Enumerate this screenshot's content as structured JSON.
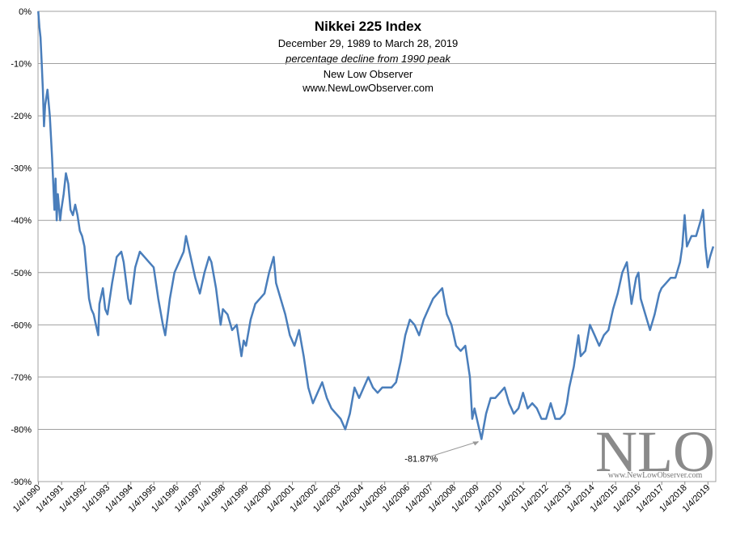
{
  "chart_data": {
    "type": "line",
    "title": "Nikkei 225 Index",
    "subtitles": [
      "December 29, 1989  to March 28, 2019",
      "percentage decline from 1990  peak",
      "New Low Observer",
      "www.NewLowObserver.com"
    ],
    "annotation": "-81.87%",
    "watermark": "NLO",
    "watermark_url": "www.NewLowObserver.com",
    "xlim": [
      1989.99,
      2019.35
    ],
    "ylim": [
      -90,
      0
    ],
    "grid": true,
    "color": "#4a7ebb",
    "xticks": [
      {
        "value": 1990.01,
        "label": "1/4/1990"
      },
      {
        "value": 1991.01,
        "label": "1/4/1991"
      },
      {
        "value": 1992.01,
        "label": "1/4/1992"
      },
      {
        "value": 1993.01,
        "label": "1/4/1993"
      },
      {
        "value": 1994.01,
        "label": "1/4/1994"
      },
      {
        "value": 1995.01,
        "label": "1/4/1995"
      },
      {
        "value": 1996.01,
        "label": "1/4/1996"
      },
      {
        "value": 1997.01,
        "label": "1/4/1997"
      },
      {
        "value": 1998.01,
        "label": "1/4/1998"
      },
      {
        "value": 1999.01,
        "label": "1/4/1999"
      },
      {
        "value": 2000.01,
        "label": "1/4/2000"
      },
      {
        "value": 2001.01,
        "label": "1/4/2001"
      },
      {
        "value": 2002.01,
        "label": "1/4/2002"
      },
      {
        "value": 2003.01,
        "label": "1/4/2003"
      },
      {
        "value": 2004.01,
        "label": "1/4/2004"
      },
      {
        "value": 2005.01,
        "label": "1/4/2005"
      },
      {
        "value": 2006.01,
        "label": "1/4/2006"
      },
      {
        "value": 2007.01,
        "label": "1/4/2007"
      },
      {
        "value": 2008.01,
        "label": "1/4/2008"
      },
      {
        "value": 2009.01,
        "label": "1/4/2009"
      },
      {
        "value": 2010.01,
        "label": "1/4/2010"
      },
      {
        "value": 2011.01,
        "label": "1/4/2011"
      },
      {
        "value": 2012.01,
        "label": "1/4/2012"
      },
      {
        "value": 2013.01,
        "label": "1/4/2013"
      },
      {
        "value": 2014.01,
        "label": "1/4/2014"
      },
      {
        "value": 2015.01,
        "label": "1/4/2015"
      },
      {
        "value": 2016.01,
        "label": "1/4/2016"
      },
      {
        "value": 2017.01,
        "label": "1/4/2017"
      },
      {
        "value": 2018.01,
        "label": "1/4/2018"
      },
      {
        "value": 2019.01,
        "label": "1/4/2019"
      }
    ],
    "yticks": [
      {
        "value": 0,
        "label": "0%"
      },
      {
        "value": -10,
        "label": "-10%"
      },
      {
        "value": -20,
        "label": "-20%"
      },
      {
        "value": -30,
        "label": "-30%"
      },
      {
        "value": -40,
        "label": "-40%"
      },
      {
        "value": -50,
        "label": "-50%"
      },
      {
        "value": -60,
        "label": "-60%"
      },
      {
        "value": -70,
        "label": "-70%"
      },
      {
        "value": -80,
        "label": "-80%"
      },
      {
        "value": -90,
        "label": "-90%"
      }
    ],
    "x": [
      1990.0,
      1990.05,
      1990.1,
      1990.15,
      1990.2,
      1990.25,
      1990.3,
      1990.4,
      1990.5,
      1990.6,
      1990.7,
      1990.75,
      1990.8,
      1990.85,
      1990.95,
      1991.0,
      1991.1,
      1991.2,
      1991.3,
      1991.4,
      1991.5,
      1991.6,
      1991.7,
      1991.8,
      1991.9,
      1992.0,
      1992.1,
      1992.2,
      1992.3,
      1992.4,
      1992.5,
      1992.6,
      1992.65,
      1992.8,
      1992.9,
      1993.0,
      1993.2,
      1993.4,
      1993.6,
      1993.7,
      1993.9,
      1994.0,
      1994.2,
      1994.4,
      1994.6,
      1994.8,
      1995.0,
      1995.2,
      1995.4,
      1995.5,
      1995.7,
      1995.9,
      1996.1,
      1996.3,
      1996.4,
      1996.6,
      1996.8,
      1997.0,
      1997.2,
      1997.4,
      1997.5,
      1997.7,
      1997.9,
      1998.0,
      1998.2,
      1998.4,
      1998.6,
      1998.8,
      1998.9,
      1999.0,
      1999.2,
      1999.4,
      1999.6,
      1999.8,
      2000.0,
      2000.2,
      2000.3,
      2000.5,
      2000.7,
      2000.9,
      2001.1,
      2001.3,
      2001.5,
      2001.7,
      2001.9,
      2002.1,
      2002.3,
      2002.5,
      2002.7,
      2002.9,
      2003.1,
      2003.3,
      2003.5,
      2003.7,
      2003.9,
      2004.1,
      2004.3,
      2004.5,
      2004.7,
      2004.9,
      2005.1,
      2005.3,
      2005.5,
      2005.7,
      2005.9,
      2006.1,
      2006.3,
      2006.5,
      2006.7,
      2006.9,
      2007.1,
      2007.3,
      2007.5,
      2007.7,
      2007.9,
      2008.1,
      2008.3,
      2008.5,
      2008.7,
      2008.8,
      2008.9,
      2009.0,
      2009.2,
      2009.4,
      2009.6,
      2009.8,
      2010.0,
      2010.2,
      2010.4,
      2010.6,
      2010.8,
      2011.0,
      2011.2,
      2011.4,
      2011.6,
      2011.8,
      2012.0,
      2012.2,
      2012.4,
      2012.6,
      2012.8,
      2012.9,
      2013.0,
      2013.2,
      2013.4,
      2013.5,
      2013.7,
      2013.9,
      2014.1,
      2014.3,
      2014.5,
      2014.7,
      2014.9,
      2015.1,
      2015.3,
      2015.5,
      2015.6,
      2015.7,
      2015.9,
      2016.0,
      2016.1,
      2016.3,
      2016.5,
      2016.7,
      2016.9,
      2017.0,
      2017.2,
      2017.4,
      2017.6,
      2017.8,
      2017.9,
      2018.0,
      2018.1,
      2018.3,
      2018.5,
      2018.7,
      2018.8,
      2018.9,
      2019.0,
      2019.1,
      2019.24
    ],
    "values": [
      0,
      -3,
      -5,
      -10,
      -15,
      -22,
      -18,
      -15,
      -20,
      -28,
      -38,
      -32,
      -40,
      -35,
      -40,
      -38,
      -35,
      -31,
      -33,
      -38,
      -39,
      -37,
      -39,
      -42,
      -43,
      -45,
      -50,
      -55,
      -57,
      -58,
      -60,
      -62,
      -56,
      -53,
      -57,
      -58,
      -52,
      -47,
      -46,
      -48,
      -55,
      -56,
      -49,
      -46,
      -47,
      -48,
      -49,
      -55,
      -60,
      -62,
      -55,
      -50,
      -48,
      -46,
      -43,
      -47,
      -51,
      -54,
      -50,
      -47,
      -48,
      -53,
      -60,
      -57,
      -58,
      -61,
      -60,
      -66,
      -63,
      -64,
      -59,
      -56,
      -55,
      -54,
      -50,
      -47,
      -52,
      -55,
      -58,
      -62,
      -64,
      -61,
      -66,
      -72,
      -75,
      -73,
      -71,
      -74,
      -76,
      -77,
      -78,
      -80,
      -77,
      -72,
      -74,
      -72,
      -70,
      -72,
      -73,
      -72,
      -72,
      -72,
      -71,
      -67,
      -62,
      -59,
      -60,
      -62,
      -59,
      -57,
      -55,
      -54,
      -53,
      -58,
      -60,
      -64,
      -65,
      -64,
      -70,
      -78,
      -76,
      -78,
      -81.87,
      -77,
      -74,
      -74,
      -73,
      -72,
      -75,
      -77,
      -76,
      -73,
      -76,
      -75,
      -76,
      -78,
      -78,
      -75,
      -78,
      -78,
      -77,
      -75,
      -72,
      -68,
      -62,
      -66,
      -65,
      -60,
      -62,
      -64,
      -62,
      -61,
      -57,
      -54,
      -50,
      -48,
      -52,
      -56,
      -51,
      -50,
      -55,
      -58,
      -61,
      -58,
      -54,
      -53,
      -52,
      -51,
      -51,
      -48,
      -45,
      -39,
      -45,
      -43,
      -43,
      -40,
      -38,
      -45,
      -49,
      -47,
      -45
    ]
  }
}
